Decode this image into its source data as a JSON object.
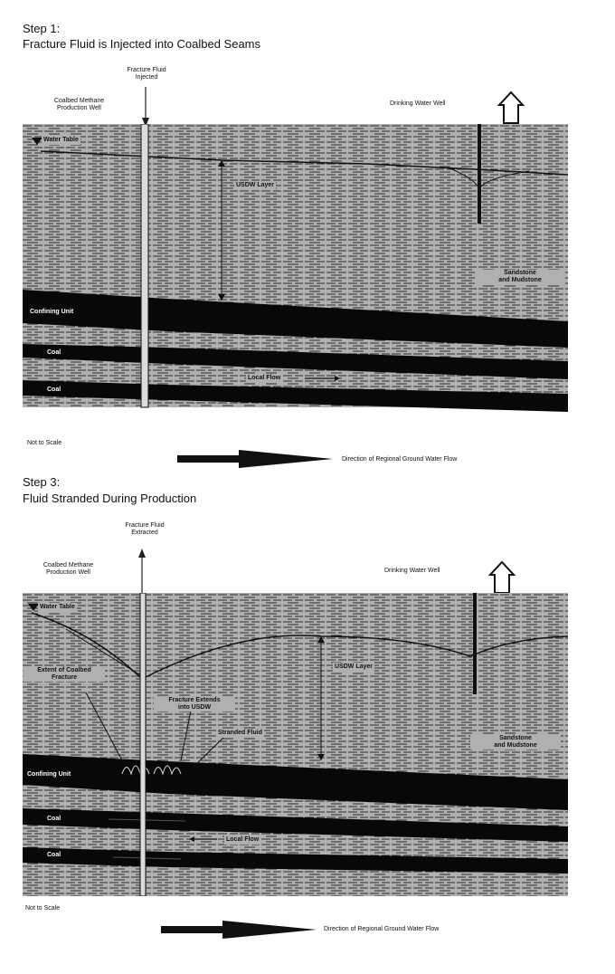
{
  "step1": {
    "heading": "Step 1:",
    "title": "Fracture Fluid is Injected into Coalbed Seams",
    "fluid_label": [
      "Fracture Fluid",
      "Injected"
    ],
    "cbm_well_label": [
      "Coalbed Methane",
      "Production Well"
    ],
    "drinking_well_label": "Drinking Water Well",
    "water_table": "Water Table",
    "usdw_layer": "USDW Layer",
    "sandstone": [
      "Sandstone",
      "and Mudstone"
    ],
    "confining_unit": "Confining Unit",
    "coal_upper": "Coal",
    "coal_lower": "Coal",
    "local_flow": "Local Flow",
    "not_to_scale": "Not to Scale",
    "regional_flow": "Direction of Regional Ground Water Flow"
  },
  "step3": {
    "heading": "Step 3:",
    "title": "Fluid Stranded During Production",
    "fluid_label": [
      "Fracture Fluid",
      "Extracted"
    ],
    "cbm_well_label": [
      "Coalbed Methane",
      "Production Well"
    ],
    "drinking_well_label": "Drinking Water Well",
    "water_table": "Water Table",
    "extent_label": [
      "Extent of Coalbed",
      "Fracture"
    ],
    "fracture_extends": [
      "Fracture Extends",
      "into USDW"
    ],
    "stranded_fluid": "Stranded Fluid",
    "usdw_layer": "USDW Layer",
    "sandstone": [
      "Sandstone",
      "and Mudstone"
    ],
    "confining_unit": "Confining Unit",
    "coal_upper": "Coal",
    "coal_lower": "Coal",
    "local_flow": "Local Flow",
    "not_to_scale": "Not to Scale",
    "regional_flow": "Direction of Regional Ground Water Flow"
  },
  "colors": {
    "rock": "#9a9a9a",
    "rock_line": "#3a3a3a",
    "dark_layer": "#080808",
    "background": "#ffffff"
  }
}
